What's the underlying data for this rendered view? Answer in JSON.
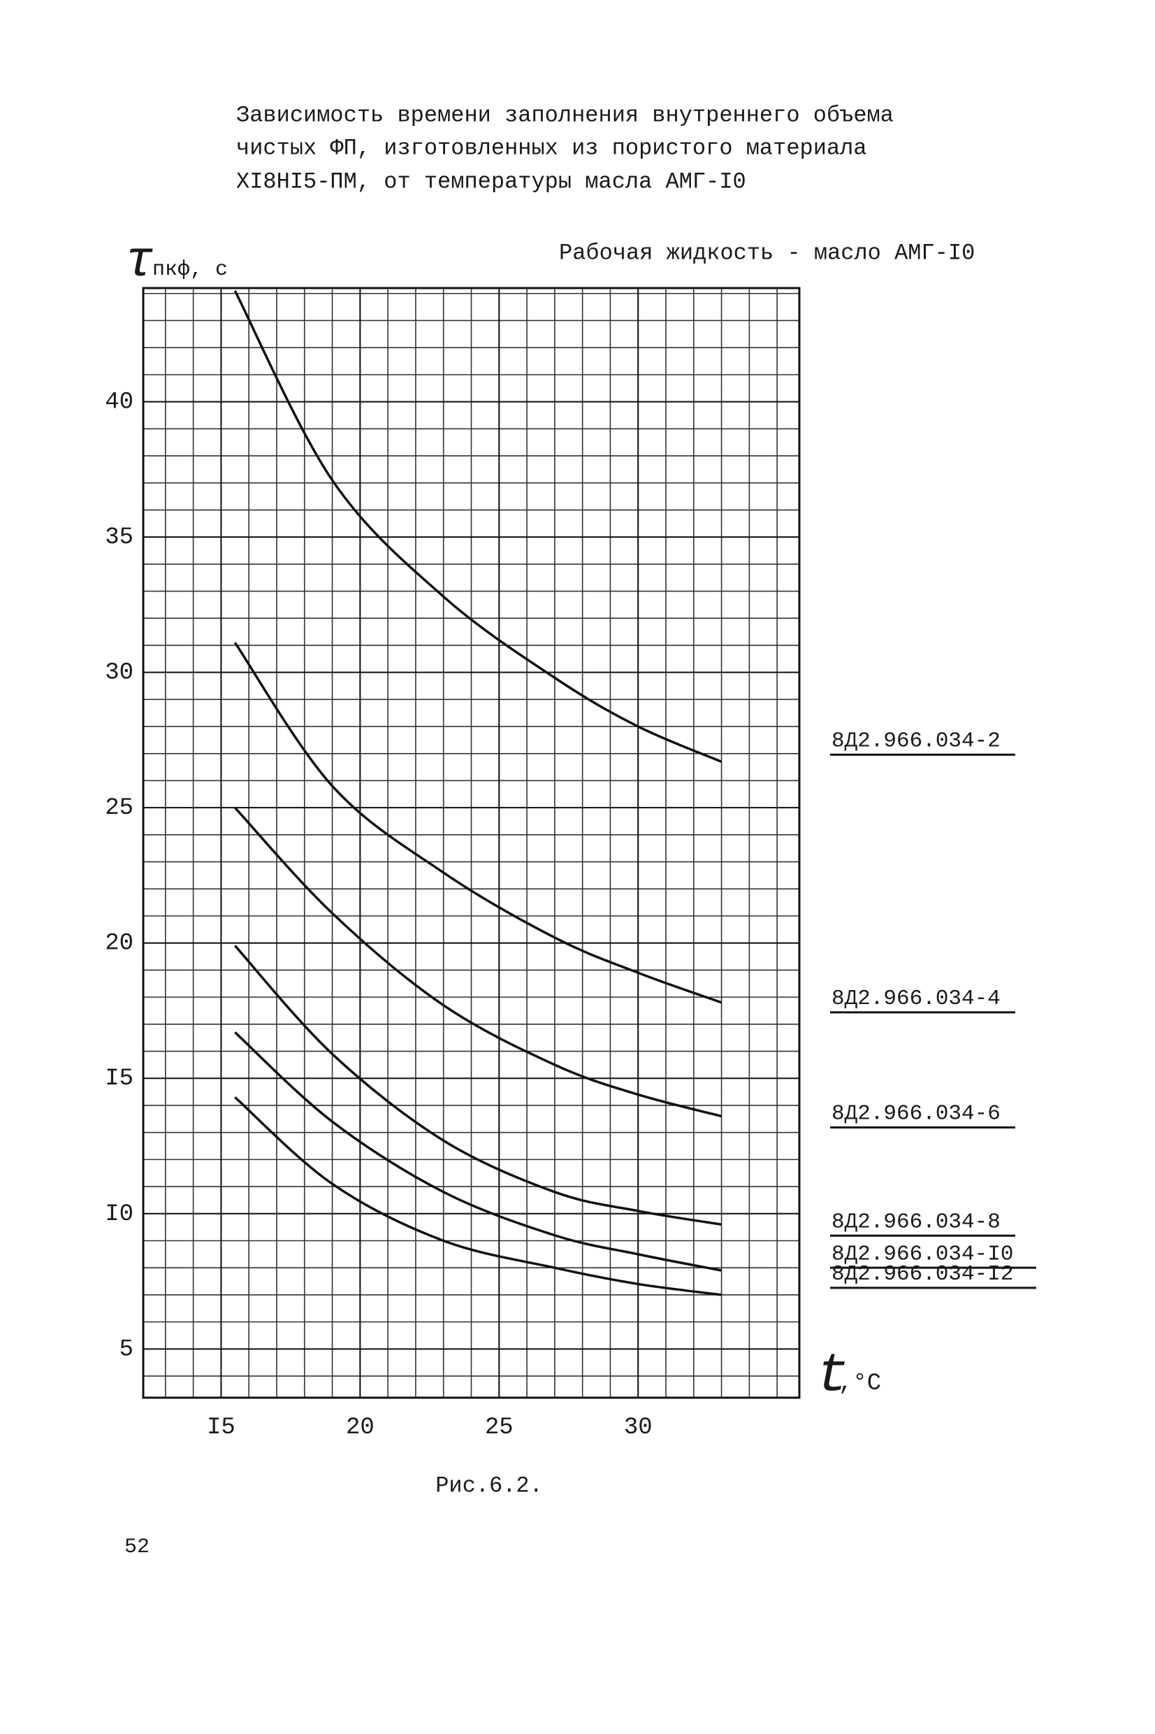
{
  "chart_data": {
    "type": "line",
    "title": [
      "Зависимость времени заполнения внутреннего объема",
      "чистых ФП, изготовленных из пористого материала",
      "XI8HI5-ПМ, от температуры масла АМГ-I0"
    ],
    "y_label": {
      "symbol": "τ",
      "subscript": "пкф, с"
    },
    "x_label": {
      "symbol": "t",
      "unit": ",°C"
    },
    "annotation": "Рабочая жидкость - масло АМГ-I0",
    "x": [
      15.5,
      19,
      23,
      27,
      30,
      33
    ],
    "series": [
      {
        "name": "8Д2.966.034-2",
        "color": "#111111",
        "values": [
          44.1,
          37.1,
          32.8,
          29.8,
          28.0,
          26.7
        ]
      },
      {
        "name": "8Д2.966.034-4",
        "color": "#111111",
        "values": [
          31.1,
          25.8,
          22.6,
          20.2,
          18.9,
          17.8
        ]
      },
      {
        "name": "8Д2.966.034-6",
        "color": "#111111",
        "values": [
          25.0,
          21.1,
          17.7,
          15.5,
          14.4,
          13.6
        ]
      },
      {
        "name": "8Д2.966.034-8",
        "color": "#111111",
        "values": [
          19.9,
          15.9,
          12.7,
          10.8,
          10.1,
          9.6
        ]
      },
      {
        "name": "8Д2.966.034-I0",
        "color": "#111111",
        "values": [
          16.7,
          13.4,
          10.8,
          9.2,
          8.5,
          7.9
        ]
      },
      {
        "name": "8Д2.966.034-I2",
        "color": "#111111",
        "values": [
          14.3,
          11.1,
          9.0,
          8.0,
          7.4,
          7.0
        ]
      }
    ],
    "xlim": [
      12.2,
      35.8
    ],
    "ylim": [
      3.2,
      44.2
    ],
    "xticks": [
      {
        "value": 15,
        "label": "I5"
      },
      20,
      25,
      30
    ],
    "yticks": [
      {
        "value": 5,
        "label": "5"
      },
      {
        "value": 10,
        "label": "I0"
      },
      {
        "value": 15,
        "label": "I5"
      },
      20,
      25,
      30,
      35,
      40
    ],
    "grid": true,
    "minor_grid": 1,
    "legend": "right",
    "caption": "Рис.6.2.",
    "page_number": "52"
  }
}
